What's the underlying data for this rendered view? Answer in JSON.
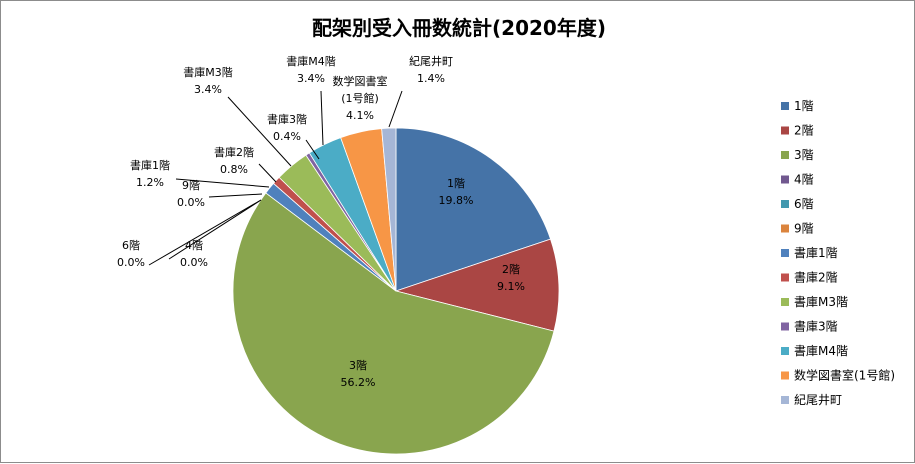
{
  "chart_data": {
    "type": "pie",
    "title": "配架別受入冊数統計(2020年度)",
    "categories": [
      "1階",
      "2階",
      "3階",
      "4階",
      "6階",
      "9階",
      "書庫1階",
      "書庫2階",
      "書庫M3階",
      "書庫3階",
      "書庫M4階",
      "数学図書室(1号館)",
      "紀尾井町"
    ],
    "values": [
      19.8,
      9.1,
      56.2,
      0.0,
      0.0,
      0.0,
      1.2,
      0.8,
      3.4,
      0.4,
      3.4,
      4.1,
      1.4
    ],
    "value_labels": [
      "19.8%",
      "9.1%",
      "56.2%",
      "0.0%",
      "0.0%",
      "0.0%",
      "1.2%",
      "0.8%",
      "3.4%",
      "0.4%",
      "3.4%",
      "4.1%",
      "1.4%"
    ],
    "slice_label_lines": [
      [
        "1階"
      ],
      [
        "2階"
      ],
      [
        "3階"
      ],
      [
        "4階"
      ],
      [
        "6階"
      ],
      [
        "9階"
      ],
      [
        "書庫1階"
      ],
      [
        "書庫2階"
      ],
      [
        "書庫M3階"
      ],
      [
        "書庫3階"
      ],
      [
        "書庫M4階"
      ],
      [
        "数学図書室",
        "(1号館)"
      ],
      [
        "紀尾井町"
      ]
    ],
    "colors": [
      "#4573a7",
      "#aa4644",
      "#89a54e",
      "#71588f",
      "#4298af",
      "#db843d",
      "#4f81bd",
      "#c0504d",
      "#9bbb59",
      "#8064a2",
      "#4bacc6",
      "#f79646",
      "#a5b6d6"
    ],
    "legend": {
      "position": "right"
    },
    "start_angle_deg": 0,
    "direction": "clockwise"
  }
}
